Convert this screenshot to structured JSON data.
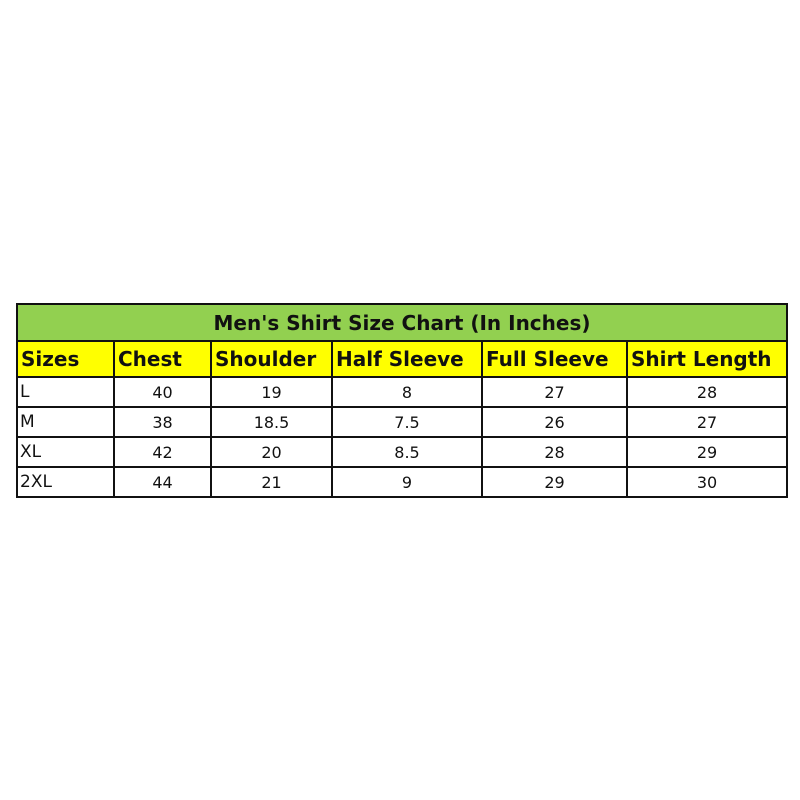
{
  "title": "Men's Shirt Size Chart (In Inches)",
  "colors": {
    "title_bg": "#92d050",
    "header_bg": "#ffff00"
  },
  "headers": [
    "Sizes",
    "Chest",
    "Shoulder",
    "Half Sleeve",
    "Full Sleeve",
    "Shirt Length"
  ],
  "rows": [
    [
      "L",
      "40",
      "19",
      "8",
      "27",
      "28"
    ],
    [
      "M",
      "38",
      "18.5",
      "7.5",
      "26",
      "27"
    ],
    [
      "XL",
      "42",
      "20",
      "8.5",
      "28",
      "29"
    ],
    [
      "2XL",
      "44",
      "21",
      "9",
      "29",
      "30"
    ]
  ]
}
